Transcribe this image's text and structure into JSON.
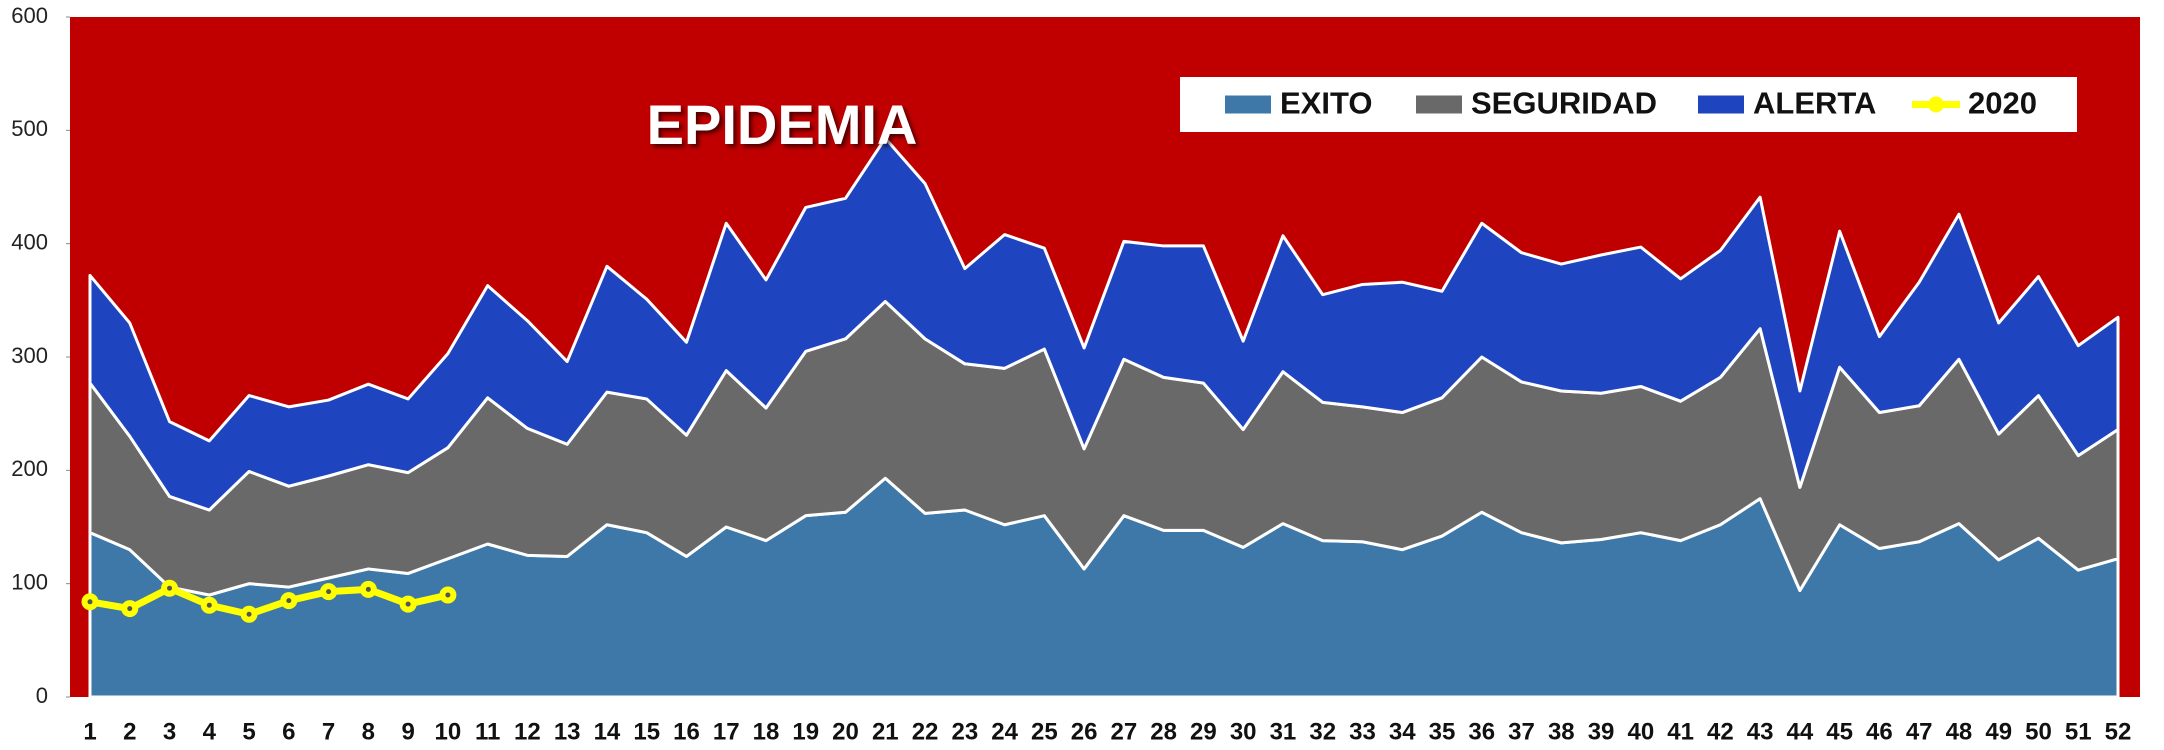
{
  "chart_data": {
    "type": "area",
    "stacked": true,
    "annotation": "EPIDEMIA",
    "background_color": "#c00000",
    "categories": [
      "1",
      "2",
      "3",
      "4",
      "5",
      "6",
      "7",
      "8",
      "9",
      "10",
      "11",
      "12",
      "13",
      "14",
      "15",
      "16",
      "17",
      "18",
      "19",
      "20",
      "21",
      "22",
      "23",
      "24",
      "25",
      "26",
      "27",
      "28",
      "29",
      "30",
      "31",
      "32",
      "33",
      "34",
      "35",
      "36",
      "37",
      "38",
      "39",
      "40",
      "41",
      "42",
      "43",
      "44",
      "45",
      "46",
      "47",
      "48",
      "49",
      "50",
      "51",
      "52"
    ],
    "series": [
      {
        "name": "EXITO",
        "color": "#3d78a8",
        "values": [
          145,
          130,
          97,
          90,
          100,
          97,
          105,
          113,
          109,
          122,
          135,
          125,
          124,
          152,
          145,
          124,
          150,
          138,
          160,
          163,
          193,
          162,
          165,
          152,
          160,
          113,
          160,
          147,
          147,
          132,
          153,
          138,
          137,
          130,
          142,
          163,
          145,
          136,
          139,
          145,
          138,
          152,
          175,
          94,
          152,
          131,
          137,
          153,
          121,
          140,
          112,
          122
        ]
      },
      {
        "name": "SEGURIDAD",
        "color": "#696969",
        "values": [
          132,
          100,
          80,
          75,
          99,
          89,
          90,
          92,
          89,
          98,
          129,
          112,
          99,
          117,
          118,
          107,
          138,
          117,
          145,
          153,
          156,
          154,
          129,
          138,
          147,
          106,
          138,
          135,
          130,
          104,
          134,
          122,
          119,
          121,
          122,
          137,
          133,
          134,
          129,
          129,
          123,
          130,
          150,
          91,
          139,
          120,
          120,
          145,
          111,
          126,
          101,
          114
        ]
      },
      {
        "name": "ALERTA",
        "color": "#1f44c0",
        "values": [
          95,
          100,
          66,
          61,
          67,
          70,
          67,
          71,
          65,
          83,
          99,
          95,
          73,
          111,
          88,
          82,
          130,
          113,
          127,
          124,
          144,
          137,
          84,
          118,
          89,
          89,
          104,
          116,
          121,
          78,
          120,
          95,
          108,
          115,
          94,
          118,
          114,
          112,
          122,
          123,
          108,
          112,
          116,
          85,
          120,
          67,
          109,
          128,
          98,
          105,
          97,
          99
        ]
      },
      {
        "name": "2020",
        "color": "#ffff00",
        "type": "line",
        "values": [
          84,
          78,
          96,
          81,
          73,
          85,
          93,
          95,
          82,
          90,
          null,
          null,
          null,
          null,
          null,
          null,
          null,
          null,
          null,
          null,
          null,
          null,
          null,
          null,
          null,
          null,
          null,
          null,
          null,
          null,
          null,
          null,
          null,
          null,
          null,
          null,
          null,
          null,
          null,
          null,
          null,
          null,
          null,
          null,
          null,
          null,
          null,
          null,
          null,
          null,
          null,
          null
        ]
      }
    ],
    "ylim": [
      0,
      600
    ],
    "yticks": [
      0,
      100,
      200,
      300,
      400,
      500,
      600
    ],
    "grid": false,
    "legend": "top-right"
  }
}
